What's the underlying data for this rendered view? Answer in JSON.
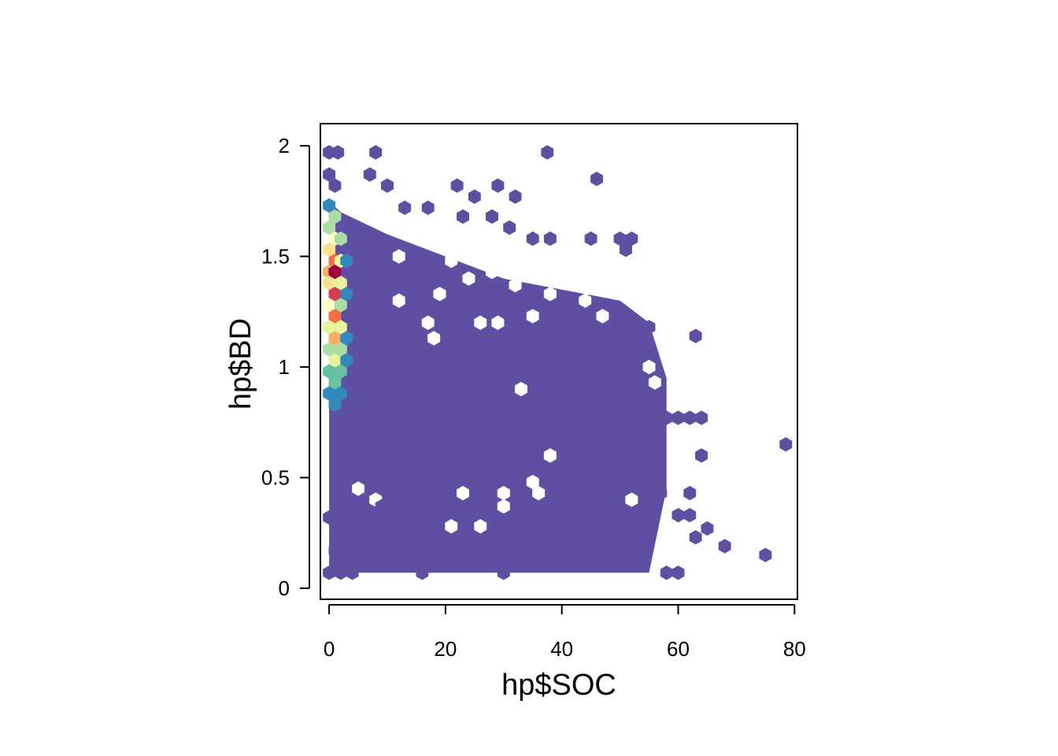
{
  "chart_data": {
    "type": "heatmap",
    "subtype": "hexbin",
    "title": "",
    "xlabel": "hp$SOC",
    "ylabel": "hp$BD",
    "xlim": [
      -1.5,
      80.5
    ],
    "ylim": [
      -0.05,
      2.1
    ],
    "x_ticks": [
      0,
      20,
      40,
      60,
      80
    ],
    "x_tick_labels": [
      "0",
      "20",
      "40",
      "60",
      "80"
    ],
    "y_ticks": [
      0,
      0.5,
      1,
      1.5,
      2
    ],
    "y_tick_labels": [
      "0",
      "0.5",
      "1",
      "1.5",
      "2"
    ],
    "colors": {
      "low": "#5E4FA2",
      "scale": [
        "#5E4FA2",
        "#3288BD",
        "#66C2A5",
        "#ABDDA4",
        "#E6F598",
        "#FFFFBF",
        "#FEE08B",
        "#FDAE61",
        "#F46D43",
        "#D53E4F",
        "#9E0142"
      ]
    },
    "bulk_region": {
      "x": [
        0,
        3,
        10,
        20,
        30,
        40,
        48,
        55,
        58,
        58,
        55,
        50,
        40,
        30,
        20,
        10,
        2,
        0
      ],
      "y": [
        0.07,
        0.07,
        0.07,
        0.07,
        0.07,
        0.07,
        0.07,
        0.07,
        0.45,
        0.95,
        1.2,
        1.3,
        1.35,
        1.4,
        1.5,
        1.6,
        1.7,
        1.75
      ]
    },
    "dense_bins": [
      {
        "x": 0,
        "y": 1.73,
        "level": 1
      },
      {
        "x": 1,
        "y": 1.68,
        "level": 3
      },
      {
        "x": 0,
        "y": 1.63,
        "level": 3
      },
      {
        "x": 1,
        "y": 1.58,
        "level": 5
      },
      {
        "x": 0,
        "y": 1.53,
        "level": 6
      },
      {
        "x": 1,
        "y": 1.48,
        "level": 8
      },
      {
        "x": 0,
        "y": 1.43,
        "level": 7
      },
      {
        "x": 1,
        "y": 1.43,
        "level": 10
      },
      {
        "x": 0,
        "y": 1.38,
        "level": 6
      },
      {
        "x": 1,
        "y": 1.33,
        "level": 9
      },
      {
        "x": 0,
        "y": 1.28,
        "level": 5
      },
      {
        "x": 1,
        "y": 1.23,
        "level": 8
      },
      {
        "x": 0,
        "y": 1.18,
        "level": 4
      },
      {
        "x": 1,
        "y": 1.13,
        "level": 7
      },
      {
        "x": 0,
        "y": 1.08,
        "level": 3
      },
      {
        "x": 1,
        "y": 1.03,
        "level": 4
      },
      {
        "x": 0,
        "y": 0.98,
        "level": 2
      },
      {
        "x": 1,
        "y": 0.93,
        "level": 2
      },
      {
        "x": 0,
        "y": 0.88,
        "level": 1
      },
      {
        "x": 1,
        "y": 0.83,
        "level": 1
      },
      {
        "x": 2,
        "y": 1.58,
        "level": 3
      },
      {
        "x": 2,
        "y": 1.48,
        "level": 4
      },
      {
        "x": 2,
        "y": 1.38,
        "level": 4
      },
      {
        "x": 2,
        "y": 1.28,
        "level": 3
      },
      {
        "x": 2,
        "y": 1.18,
        "level": 4
      },
      {
        "x": 2,
        "y": 1.08,
        "level": 3
      },
      {
        "x": 2,
        "y": 0.98,
        "level": 2
      },
      {
        "x": 2,
        "y": 0.88,
        "level": 1
      },
      {
        "x": 3,
        "y": 1.48,
        "level": 1
      },
      {
        "x": 3,
        "y": 1.33,
        "level": 1
      },
      {
        "x": 3,
        "y": 1.13,
        "level": 1
      },
      {
        "x": 3,
        "y": 1.03,
        "level": 1
      }
    ],
    "outlier_bins": [
      {
        "x": 0,
        "y": 1.97
      },
      {
        "x": 1.5,
        "y": 1.97
      },
      {
        "x": 8,
        "y": 1.97
      },
      {
        "x": 37.5,
        "y": 1.97
      },
      {
        "x": 0,
        "y": 1.87
      },
      {
        "x": 1,
        "y": 1.82
      },
      {
        "x": 7,
        "y": 1.87
      },
      {
        "x": 10,
        "y": 1.82
      },
      {
        "x": 22,
        "y": 1.82
      },
      {
        "x": 25,
        "y": 1.77
      },
      {
        "x": 29,
        "y": 1.82
      },
      {
        "x": 32,
        "y": 1.77
      },
      {
        "x": 46,
        "y": 1.85
      },
      {
        "x": 13,
        "y": 1.72
      },
      {
        "x": 17,
        "y": 1.72
      },
      {
        "x": 23,
        "y": 1.68
      },
      {
        "x": 28,
        "y": 1.68
      },
      {
        "x": 31,
        "y": 1.63
      },
      {
        "x": 35,
        "y": 1.58
      },
      {
        "x": 38,
        "y": 1.58
      },
      {
        "x": 45,
        "y": 1.58
      },
      {
        "x": 50,
        "y": 1.58
      },
      {
        "x": 52,
        "y": 1.58
      },
      {
        "x": 51,
        "y": 1.53
      },
      {
        "x": 55,
        "y": 1.18
      },
      {
        "x": 63,
        "y": 1.14
      },
      {
        "x": 58,
        "y": 0.77
      },
      {
        "x": 60,
        "y": 0.77
      },
      {
        "x": 62,
        "y": 0.77
      },
      {
        "x": 64,
        "y": 0.77
      },
      {
        "x": 64,
        "y": 0.6
      },
      {
        "x": 78.5,
        "y": 0.65
      },
      {
        "x": 62,
        "y": 0.43
      },
      {
        "x": 63,
        "y": 0.23
      },
      {
        "x": 65,
        "y": 0.27
      },
      {
        "x": 68,
        "y": 0.19
      },
      {
        "x": 75,
        "y": 0.15
      },
      {
        "x": 60,
        "y": 0.33
      },
      {
        "x": 62,
        "y": 0.33
      },
      {
        "x": 56,
        "y": 0.5
      },
      {
        "x": 57,
        "y": 0.43
      },
      {
        "x": 55,
        "y": 0.38
      },
      {
        "x": 58,
        "y": 0.07
      },
      {
        "x": 60,
        "y": 0.07
      },
      {
        "x": 16,
        "y": 0.07
      },
      {
        "x": 30,
        "y": 0.07
      },
      {
        "x": 9,
        "y": 0.12
      },
      {
        "x": 6,
        "y": 0.15
      },
      {
        "x": 4,
        "y": 0.07
      },
      {
        "x": 2,
        "y": 0.07
      },
      {
        "x": 0,
        "y": 0.07
      },
      {
        "x": 1,
        "y": 0.17
      },
      {
        "x": 0,
        "y": 0.32
      },
      {
        "x": 3,
        "y": 0.3
      },
      {
        "x": 6,
        "y": 0.28
      },
      {
        "x": 9,
        "y": 0.37
      },
      {
        "x": 11,
        "y": 0.3
      },
      {
        "x": 14,
        "y": 0.25
      },
      {
        "x": 12,
        "y": 0.2
      }
    ],
    "holes": [
      {
        "x": 33,
        "y": 0.9
      },
      {
        "x": 38,
        "y": 0.6
      },
      {
        "x": 23,
        "y": 0.43
      },
      {
        "x": 30,
        "y": 0.43
      },
      {
        "x": 36,
        "y": 0.43
      },
      {
        "x": 35,
        "y": 0.48
      },
      {
        "x": 30,
        "y": 0.37
      },
      {
        "x": 21,
        "y": 0.28
      },
      {
        "x": 26,
        "y": 0.28
      },
      {
        "x": 52,
        "y": 0.4
      },
      {
        "x": 18,
        "y": 1.13
      },
      {
        "x": 17,
        "y": 1.2
      },
      {
        "x": 26,
        "y": 1.2
      },
      {
        "x": 29,
        "y": 1.2
      },
      {
        "x": 35,
        "y": 1.23
      },
      {
        "x": 47,
        "y": 1.23
      },
      {
        "x": 44,
        "y": 1.3
      },
      {
        "x": 19,
        "y": 1.33
      },
      {
        "x": 12,
        "y": 1.3
      },
      {
        "x": 24,
        "y": 1.4
      },
      {
        "x": 32,
        "y": 1.37
      },
      {
        "x": 38,
        "y": 1.33
      },
      {
        "x": 55,
        "y": 1.0
      },
      {
        "x": 56,
        "y": 0.93
      },
      {
        "x": 12,
        "y": 1.5
      },
      {
        "x": 21,
        "y": 1.48
      },
      {
        "x": 28,
        "y": 1.43
      },
      {
        "x": 40,
        "y": 1.48
      },
      {
        "x": 47,
        "y": 1.45
      },
      {
        "x": 5,
        "y": 0.45
      },
      {
        "x": 8,
        "y": 0.4
      }
    ]
  }
}
